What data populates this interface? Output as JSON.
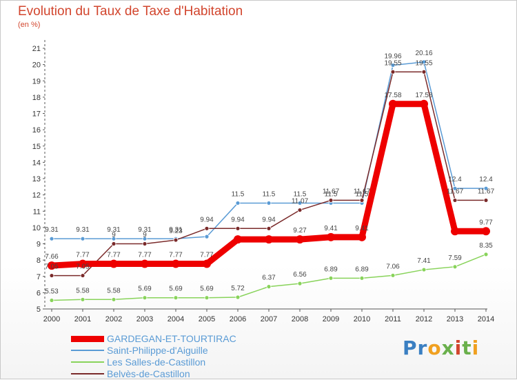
{
  "header": {
    "title": "Evolution du Taux de Taxe d'Habitation",
    "unit": "(en %)"
  },
  "logo": {
    "text": "Proxiti",
    "letters": [
      "P",
      "r",
      "o",
      "x",
      "i",
      "t",
      "i"
    ],
    "colors": [
      "#3a7fc2",
      "#3a7fc2",
      "#f0a020",
      "#6ab04c",
      "#d2452d",
      "#6ab04c",
      "#f0a020"
    ]
  },
  "chart_data": {
    "type": "line",
    "title": "Evolution du Taux de Taxe d'Habitation",
    "ylabel": "(en %)",
    "xlabel": "",
    "ylim": [
      5,
      21
    ],
    "yticks": [
      5,
      6,
      7,
      8,
      9,
      10,
      11,
      12,
      13,
      14,
      15,
      16,
      17,
      18,
      19,
      20,
      21
    ],
    "x": [
      "2000",
      "2001",
      "2002",
      "2003",
      "2004",
      "2005",
      "2006",
      "2007",
      "2008",
      "2009",
      "2010",
      "2011",
      "2012",
      "2013",
      "2014"
    ],
    "grid": false,
    "legend": "bottom-left",
    "series": [
      {
        "name": "GARDEGAN-ET-TOURTIRAC",
        "color": "#ee0000",
        "values": [
          7.66,
          7.77,
          7.77,
          7.77,
          7.77,
          7.77,
          9.27,
          9.27,
          9.27,
          9.41,
          9.41,
          17.58,
          17.58,
          9.77,
          9.77
        ],
        "labels": [
          "7.66",
          "7.77",
          "7.77",
          "7.77",
          "7.77",
          "7.77",
          "",
          "",
          "9.27",
          "9.41",
          "9.41",
          "17.58",
          "17.58",
          "",
          "9.77"
        ]
      },
      {
        "name": "Saint-Philippe-d'Aiguille",
        "color": "#5a9bd5",
        "values": [
          9.31,
          9.31,
          9.31,
          9.31,
          9.31,
          9.44,
          11.5,
          11.5,
          11.5,
          11.5,
          11.5,
          19.96,
          20.16,
          12.4,
          12.4
        ],
        "labels": [
          "9.31",
          "9.31",
          "9.31",
          "9.31",
          "9.31",
          "",
          "11.5",
          "11.5",
          "11.5",
          "11.5",
          "11.5",
          "19.96",
          "20.16",
          "12.4",
          "12.4"
        ]
      },
      {
        "name": "Les Salles-de-Castillon",
        "color": "#88d35a",
        "values": [
          5.53,
          5.58,
          5.58,
          5.69,
          5.69,
          5.69,
          5.72,
          6.37,
          6.56,
          6.89,
          6.89,
          7.06,
          7.41,
          7.59,
          8.35
        ],
        "labels": [
          "5.53",
          "5.58",
          "5.58",
          "5.69",
          "5.69",
          "5.69",
          "5.72",
          "6.37",
          "6.56",
          "6.89",
          "6.89",
          "7.06",
          "7.41",
          "7.59",
          "8.35"
        ]
      },
      {
        "name": "Belvès-de-Castillon",
        "color": "#7a2a2a",
        "values": [
          7.05,
          7.05,
          9.0,
          9.0,
          9.23,
          9.94,
          9.94,
          9.94,
          11.07,
          11.67,
          11.67,
          19.55,
          19.55,
          11.67,
          11.67
        ],
        "labels": [
          "7.05",
          "7.05",
          "9",
          "9",
          "9.23",
          "9.94",
          "9.94",
          "9.94",
          "11.07",
          "11.67",
          "11.67",
          "19.55",
          "19.55",
          "11.67",
          "11.67"
        ]
      }
    ]
  }
}
